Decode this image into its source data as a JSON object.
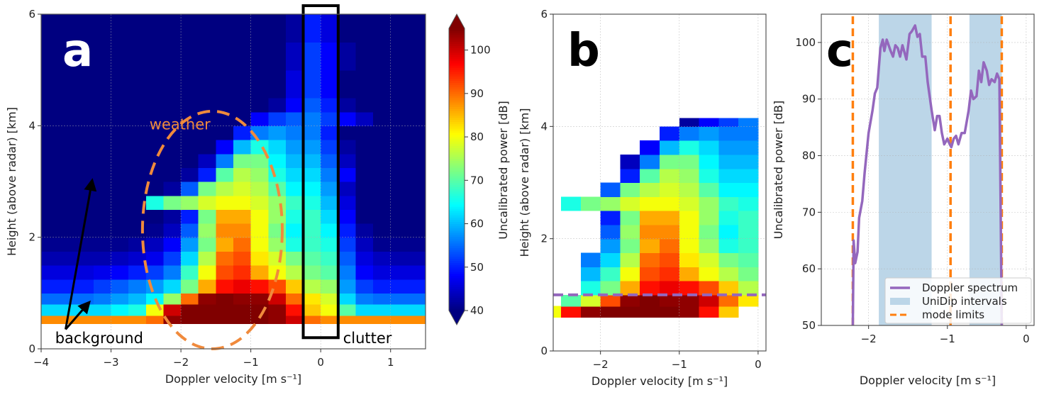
{
  "chart_data": [
    {
      "panel": "a",
      "type": "heatmap",
      "xlabel": "Doppler velocity [m s⁻¹]",
      "ylabel": "Height (above radar) [km]",
      "xlim": [
        -4,
        1.5
      ],
      "ylim": [
        0,
        6
      ],
      "xticks": [
        -4,
        -3,
        -2,
        -1,
        0,
        1
      ],
      "xtick_labels": [
        "−4",
        "−3",
        "−2",
        "−1",
        "0",
        "1"
      ],
      "yticks": [
        0,
        2,
        4,
        6
      ],
      "ytick_labels": [
        "0",
        "2",
        "4",
        "6"
      ],
      "grid": true,
      "colormap": "jet",
      "x_centers": [
        -3.875,
        -3.625,
        -3.375,
        -3.125,
        -2.875,
        -2.625,
        -2.375,
        -2.125,
        -1.875,
        -1.625,
        -1.375,
        -1.125,
        -0.875,
        -0.625,
        -0.375,
        -0.125,
        0.125,
        0.375,
        0.625,
        0.875,
        1.125,
        1.375
      ],
      "y_edges": [
        0.45,
        0.6,
        0.8,
        1.0,
        1.25,
        1.5,
        1.75,
        2.0,
        2.25,
        2.5,
        2.75,
        3.0,
        3.25,
        3.5,
        3.75,
        4.0,
        4.25,
        4.5,
        5.0,
        5.5,
        6.0
      ],
      "z": [
        [
          88,
          88,
          88,
          88,
          88,
          88,
          90,
          104,
          106,
          106,
          106,
          106,
          106,
          104,
          100,
          90,
          88,
          88,
          88,
          88,
          88,
          88
        ],
        [
          62,
          62,
          62,
          62,
          64,
          66,
          80,
          100,
          106,
          106,
          106,
          106,
          106,
          104,
          96,
          84,
          80,
          70,
          62,
          62,
          62,
          62
        ],
        [
          55,
          55,
          55,
          56,
          58,
          60,
          64,
          74,
          90,
          104,
          106,
          104,
          104,
          100,
          90,
          82,
          78,
          62,
          56,
          55,
          55,
          55
        ],
        [
          50,
          50,
          50,
          52,
          54,
          56,
          58,
          62,
          72,
          86,
          96,
          98,
          96,
          92,
          84,
          76,
          74,
          58,
          52,
          50,
          50,
          50
        ],
        [
          46,
          46,
          46,
          47,
          48,
          50,
          52,
          56,
          68,
          80,
          92,
          94,
          86,
          80,
          76,
          72,
          70,
          56,
          48,
          46,
          46,
          46
        ],
        [
          43,
          43,
          43,
          43,
          44,
          45,
          47,
          52,
          62,
          76,
          90,
          92,
          82,
          78,
          72,
          70,
          68,
          54,
          46,
          44,
          43,
          43
        ],
        [
          41,
          41,
          41,
          41,
          41,
          42,
          44,
          48,
          58,
          72,
          86,
          90,
          80,
          74,
          66,
          68,
          66,
          52,
          44,
          41,
          41,
          41
        ],
        [
          40,
          40,
          40,
          40,
          40,
          40,
          41,
          44,
          54,
          74,
          88,
          88,
          80,
          72,
          64,
          68,
          64,
          50,
          42,
          40,
          40,
          40
        ],
        [
          40,
          40,
          40,
          40,
          40,
          40,
          40,
          42,
          50,
          72,
          86,
          86,
          80,
          74,
          66,
          68,
          62,
          48,
          40,
          40,
          40,
          40
        ],
        [
          40,
          40,
          40,
          40,
          40,
          40,
          66,
          72,
          74,
          78,
          80,
          80,
          78,
          74,
          68,
          66,
          60,
          46,
          40,
          40,
          40,
          40
        ],
        [
          40,
          40,
          40,
          40,
          40,
          40,
          40,
          42,
          54,
          72,
          76,
          78,
          76,
          70,
          64,
          64,
          58,
          44,
          40,
          40,
          40,
          40
        ],
        [
          40,
          40,
          40,
          40,
          40,
          40,
          40,
          40,
          42,
          50,
          70,
          76,
          74,
          66,
          62,
          62,
          56,
          48,
          40,
          40,
          40,
          40
        ],
        [
          40,
          40,
          40,
          40,
          40,
          40,
          40,
          40,
          40,
          44,
          56,
          72,
          72,
          64,
          60,
          60,
          54,
          44,
          40,
          40,
          40,
          40
        ],
        [
          40,
          40,
          40,
          40,
          40,
          40,
          40,
          40,
          40,
          40,
          48,
          60,
          66,
          62,
          58,
          58,
          52,
          42,
          40,
          40,
          40,
          40
        ],
        [
          40,
          40,
          40,
          40,
          40,
          40,
          40,
          40,
          40,
          40,
          40,
          50,
          56,
          58,
          56,
          56,
          50,
          40,
          40,
          40,
          40,
          40
        ],
        [
          40,
          40,
          40,
          40,
          40,
          40,
          40,
          40,
          40,
          40,
          40,
          40,
          48,
          52,
          54,
          56,
          52,
          48,
          44,
          40,
          40,
          40
        ],
        [
          40,
          40,
          40,
          40,
          40,
          40,
          40,
          40,
          40,
          40,
          40,
          40,
          40,
          42,
          48,
          54,
          50,
          42,
          40,
          40,
          40,
          40
        ],
        [
          40,
          40,
          40,
          40,
          40,
          40,
          40,
          40,
          40,
          40,
          40,
          40,
          40,
          40,
          46,
          52,
          48,
          40,
          40,
          40,
          40,
          40
        ],
        [
          40,
          40,
          40,
          40,
          40,
          40,
          40,
          40,
          40,
          40,
          40,
          40,
          40,
          40,
          44,
          52,
          48,
          42,
          40,
          40,
          40,
          40
        ],
        [
          40,
          40,
          40,
          40,
          40,
          40,
          40,
          40,
          40,
          40,
          40,
          40,
          40,
          40,
          42,
          50,
          46,
          40,
          40,
          40,
          40,
          40
        ]
      ],
      "colorbar": {
        "label": "Uncalibrated power [dB]",
        "range": [
          40,
          105
        ],
        "ticks": [
          40,
          50,
          60,
          70,
          80,
          90,
          100
        ],
        "tick_labels": [
          "40",
          "50",
          "60",
          "70",
          "80",
          "90",
          "100"
        ],
        "extend": "both"
      },
      "annotations": {
        "panel_letter": "a",
        "weather": "weather",
        "background": "background",
        "clutter": "clutter"
      },
      "colors": {
        "weather_ellipse": "#f08a3c",
        "clutter_box": "#000000",
        "arrows": "#000000"
      }
    },
    {
      "panel": "b",
      "type": "heatmap",
      "xlabel": "Doppler velocity [m s⁻¹]",
      "ylabel": "Height (above radar) [km]",
      "xlim": [
        -2.6,
        0.1
      ],
      "ylim": [
        0,
        6
      ],
      "xticks": [
        -2,
        -1,
        0
      ],
      "xtick_labels": [
        "−2",
        "−1",
        "0"
      ],
      "yticks": [
        0,
        2,
        4,
        6
      ],
      "ytick_labels": [
        "0",
        "2",
        "4",
        "6"
      ],
      "grid": true,
      "colormap": "jet",
      "x_centers": [
        -2.625,
        -2.375,
        -2.125,
        -1.875,
        -1.625,
        -1.375,
        -1.125,
        -0.875,
        -0.625,
        -0.375,
        -0.125
      ],
      "y_edges": [
        0.6,
        0.8,
        1.0,
        1.25,
        1.5,
        1.75,
        2.0,
        2.25,
        2.5,
        2.75,
        3.0,
        3.25,
        3.5,
        3.75,
        4.0,
        4.15
      ],
      "z": [
        [
          80,
          96,
          104,
          106,
          106,
          106,
          106,
          104,
          96,
          84,
          null
        ],
        [
          null,
          70,
          78,
          92,
          104,
          106,
          104,
          104,
          100,
          90,
          82
        ],
        [
          null,
          null,
          66,
          72,
          86,
          96,
          98,
          96,
          92,
          84,
          76
        ],
        [
          null,
          null,
          60,
          68,
          80,
          92,
          94,
          86,
          80,
          76,
          72
        ],
        [
          null,
          null,
          56,
          62,
          76,
          90,
          92,
          82,
          78,
          72,
          70
        ],
        [
          null,
          null,
          null,
          58,
          72,
          86,
          90,
          80,
          74,
          66,
          68
        ],
        [
          null,
          null,
          null,
          54,
          74,
          88,
          88,
          80,
          72,
          64,
          68
        ],
        [
          null,
          null,
          null,
          50,
          72,
          86,
          86,
          80,
          74,
          66,
          68
        ],
        [
          null,
          66,
          72,
          74,
          78,
          80,
          80,
          78,
          74,
          68,
          66
        ],
        [
          null,
          null,
          null,
          54,
          72,
          76,
          78,
          76,
          70,
          64,
          64
        ],
        [
          null,
          null,
          null,
          null,
          50,
          70,
          76,
          74,
          66,
          62,
          62
        ],
        [
          null,
          null,
          null,
          null,
          44,
          56,
          72,
          72,
          64,
          60,
          60
        ],
        [
          null,
          null,
          null,
          null,
          null,
          48,
          60,
          66,
          62,
          58,
          58
        ],
        [
          null,
          null,
          null,
          null,
          null,
          null,
          50,
          56,
          58,
          56,
          56
        ],
        [
          null,
          null,
          null,
          null,
          null,
          null,
          null,
          42,
          48,
          52,
          56
        ]
      ],
      "reference_height_km": 1.0,
      "annotations": {
        "panel_letter": "b"
      },
      "colors": {
        "reference_line": "#9467bd"
      }
    },
    {
      "panel": "c",
      "type": "line",
      "xlabel": "Doppler velocity [m s⁻¹]",
      "ylabel": "Uncalibrated power [dB]",
      "xlim": [
        -2.6,
        0.1
      ],
      "ylim": [
        50,
        105
      ],
      "xticks": [
        -2,
        -1,
        0
      ],
      "xtick_labels": [
        "−2",
        "−1",
        "0"
      ],
      "yticks": [
        50,
        60,
        70,
        80,
        90,
        100
      ],
      "ytick_labels": [
        "50",
        "60",
        "70",
        "80",
        "90",
        "100"
      ],
      "grid": true,
      "series": [
        {
          "name": "Doppler spectrum",
          "color": "#9467bd",
          "x": [
            -2.2,
            -2.19,
            -2.17,
            -2.14,
            -2.12,
            -2.08,
            -2.05,
            -2.0,
            -1.95,
            -1.92,
            -1.89,
            -1.85,
            -1.82,
            -1.8,
            -1.77,
            -1.72,
            -1.69,
            -1.66,
            -1.63,
            -1.6,
            -1.57,
            -1.52,
            -1.48,
            -1.45,
            -1.41,
            -1.38,
            -1.35,
            -1.32,
            -1.28,
            -1.25,
            -1.2,
            -1.16,
            -1.13,
            -1.1,
            -1.07,
            -1.04,
            -1.0,
            -0.97,
            -0.95,
            -0.92,
            -0.89,
            -0.86,
            -0.82,
            -0.78,
            -0.73,
            -0.7,
            -0.67,
            -0.63,
            -0.6,
            -0.57,
            -0.54,
            -0.5,
            -0.47,
            -0.44,
            -0.4,
            -0.37,
            -0.34,
            -0.31
          ],
          "y": [
            50,
            65,
            61,
            63,
            69,
            72,
            77,
            84,
            88,
            91,
            92,
            99,
            100.5,
            98.5,
            100.5,
            98.5,
            97.5,
            99.5,
            99,
            97.5,
            99.5,
            97,
            101.5,
            102,
            103,
            101,
            101.5,
            97.5,
            97.5,
            93,
            88,
            84.5,
            87,
            87,
            84,
            82,
            83,
            82,
            81.5,
            83,
            83.5,
            82,
            84,
            84,
            88,
            91.5,
            90,
            90.5,
            95,
            93,
            96.5,
            95,
            92.5,
            93.5,
            93,
            94.5,
            93.5,
            50
          ]
        }
      ],
      "intervals": {
        "name": "UniDip intervals",
        "color": "#bcd6e8",
        "ranges": [
          [
            -1.87,
            -1.2
          ],
          [
            -0.72,
            -0.31
          ]
        ]
      },
      "mode_limits": {
        "name": "mode limits",
        "color": "#ff7f0e",
        "x": [
          -2.2,
          -0.96,
          -0.31
        ]
      },
      "legend": {
        "placement": "lower-right",
        "entries": [
          "Doppler spectrum",
          "UniDip intervals",
          "mode limits"
        ]
      },
      "annotations": {
        "panel_letter": "c"
      }
    }
  ]
}
